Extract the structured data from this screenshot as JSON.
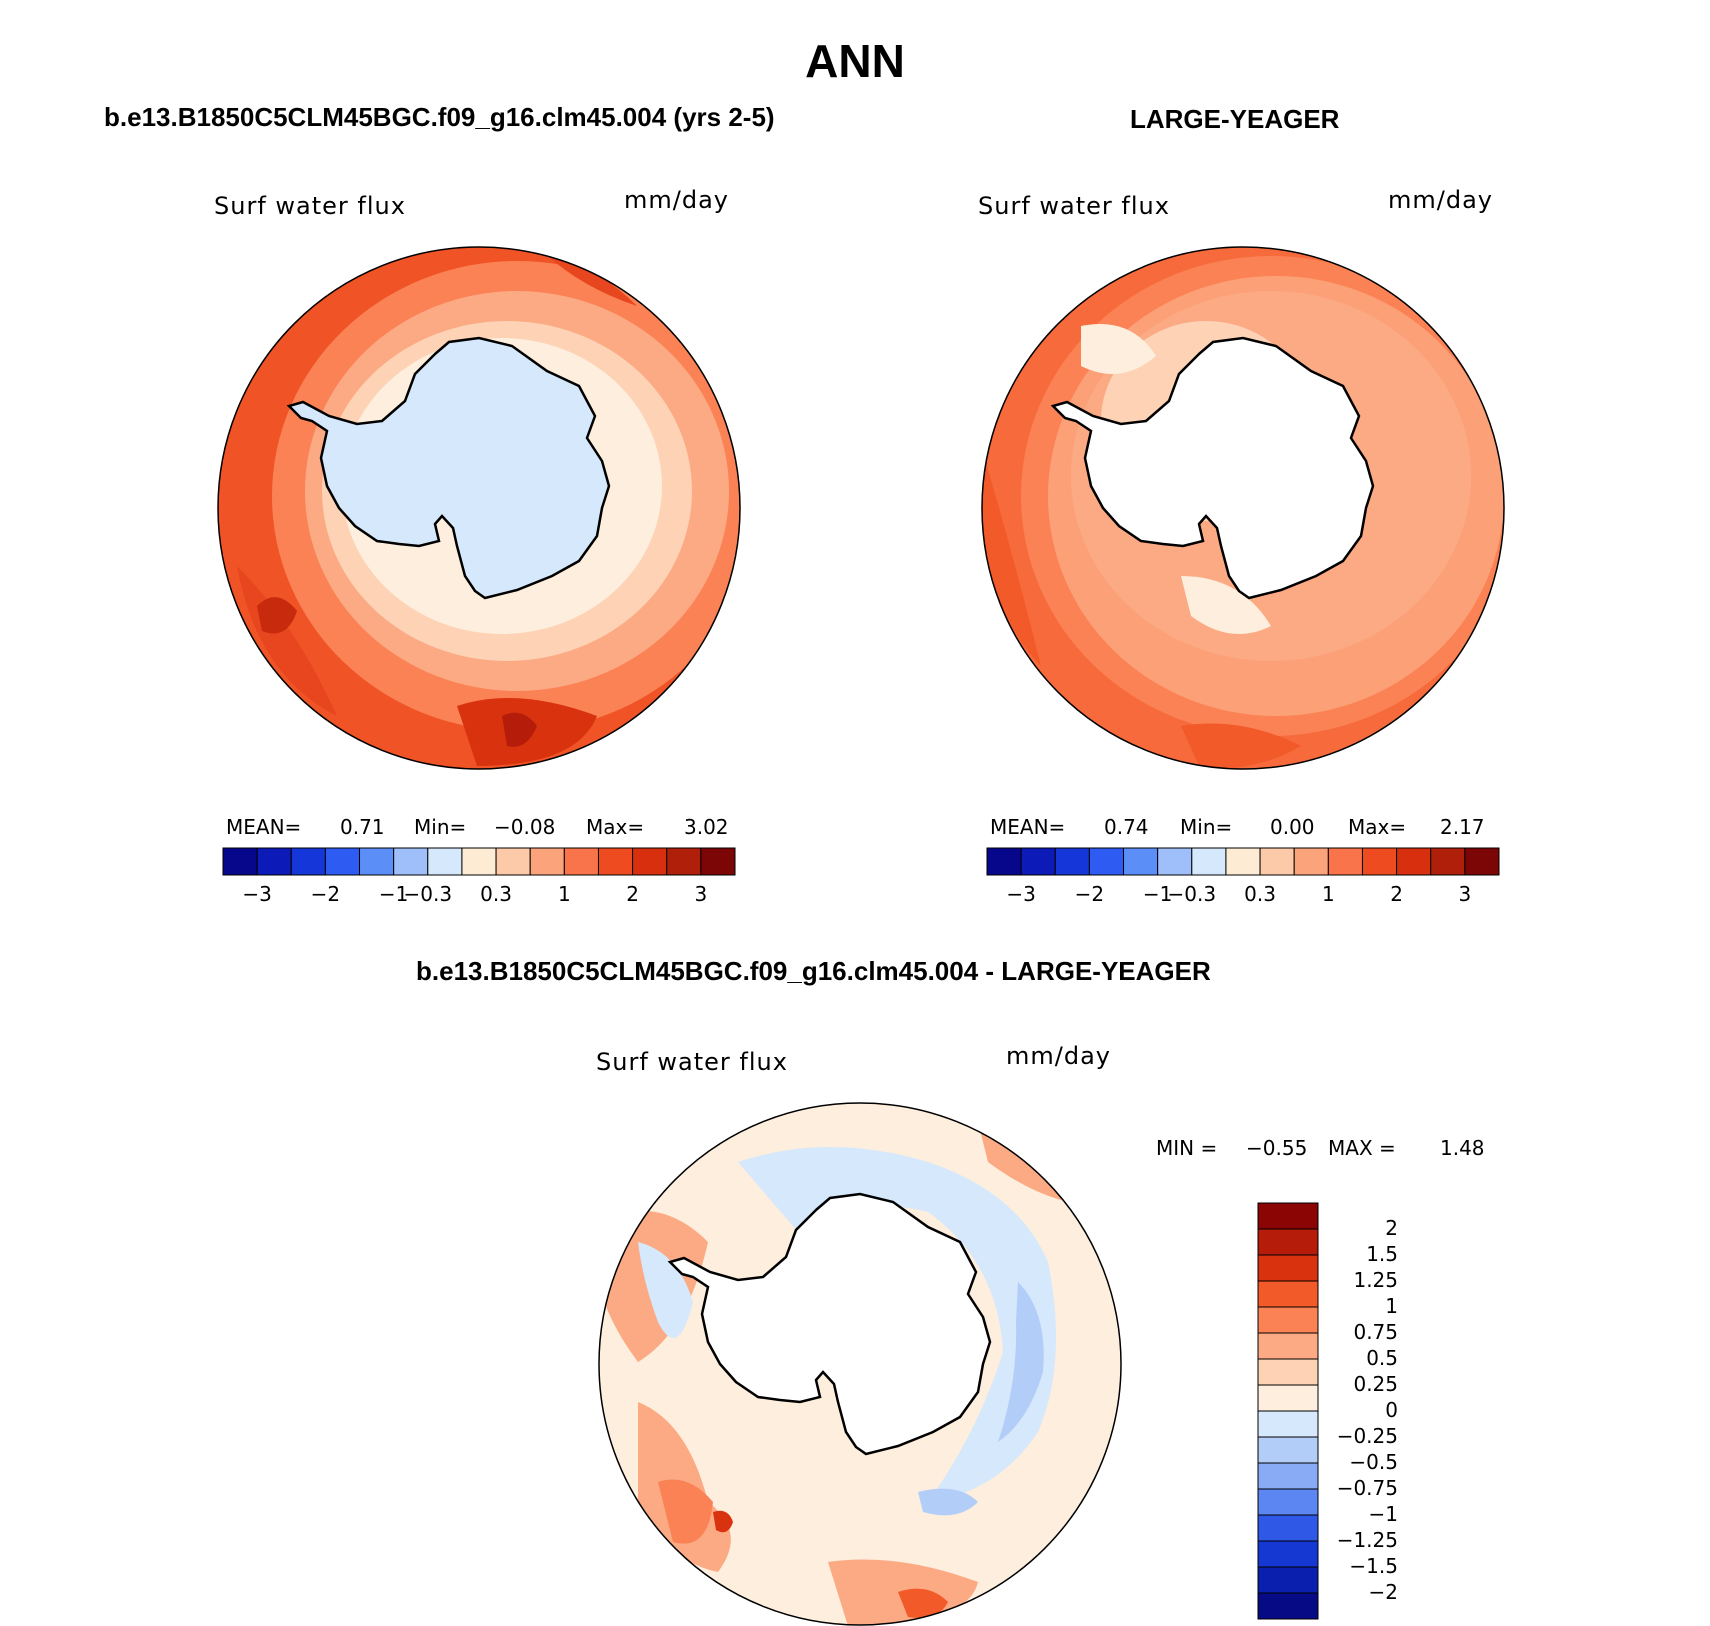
{
  "figure": {
    "title": "ANN"
  },
  "panels": [
    {
      "case_title": "b.e13.B1850C5CLM45BGC.f09_g16.clm45.004 (yrs 2-5)",
      "variable_label": "Surf water flux",
      "units_label": "mm/day",
      "stats": {
        "mean_label": "MEAN=",
        "mean_value": "0.71",
        "min_label": "Min=",
        "min_value": "−0.08",
        "max_label": "Max=",
        "max_value": "3.02"
      },
      "colorbar_labels": [
        "−3",
        "−2",
        "−1",
        "−0.3",
        "0.3",
        "1",
        "2",
        "3"
      ],
      "land_fill": "#d6e8fb"
    },
    {
      "case_title": "LARGE-YEAGER",
      "variable_label": "Surf water flux",
      "units_label": "mm/day",
      "stats": {
        "mean_label": "MEAN=",
        "mean_value": "0.74",
        "min_label": "Min=",
        "min_value": "0.00",
        "max_label": "Max=",
        "max_value": "2.17"
      },
      "colorbar_labels": [
        "−3",
        "−2",
        "−1",
        "−0.3",
        "0.3",
        "1",
        "2",
        "3"
      ],
      "land_fill": "#ffffff"
    },
    {
      "case_title": "b.e13.B1850C5CLM45BGC.f09_g16.clm45.004 - LARGE-YEAGER",
      "variable_label": "Surf water flux",
      "units_label": "mm/day",
      "stats": {
        "min_label": "MIN =",
        "min_value": "−0.55",
        "max_label": "MAX =",
        "max_value": "1.48"
      },
      "colorbar_labels": [
        "2",
        "1.5",
        "1.25",
        "1",
        "0.75",
        "0.5",
        "0.25",
        "0",
        "−0.25",
        "−0.5",
        "−0.75",
        "−1",
        "−1.25",
        "−1.5",
        "−2"
      ],
      "land_fill": "#ffffff"
    }
  ],
  "colors": {
    "horizontal_colorbar": [
      "#07078c",
      "#0c1ab8",
      "#1536d9",
      "#2e5cf2",
      "#5c8ef7",
      "#9ebffa",
      "#d6e8fb",
      "#fdebd4",
      "#fccaa9",
      "#fba37a",
      "#f9744a",
      "#ef4b20",
      "#d8300e",
      "#b01f0a",
      "#7c0606"
    ],
    "vertical_colorbar_top_down": [
      "#8c0505",
      "#b51d0a",
      "#d8330e",
      "#f25a2a",
      "#fb8255",
      "#fcaa84",
      "#fdd2b5",
      "#fdeedd",
      "#d6e8fb",
      "#b3cdf9",
      "#89abf6",
      "#5c86f1",
      "#2f58e6",
      "#1638d2",
      "#0b1fae",
      "#060a84"
    ]
  }
}
